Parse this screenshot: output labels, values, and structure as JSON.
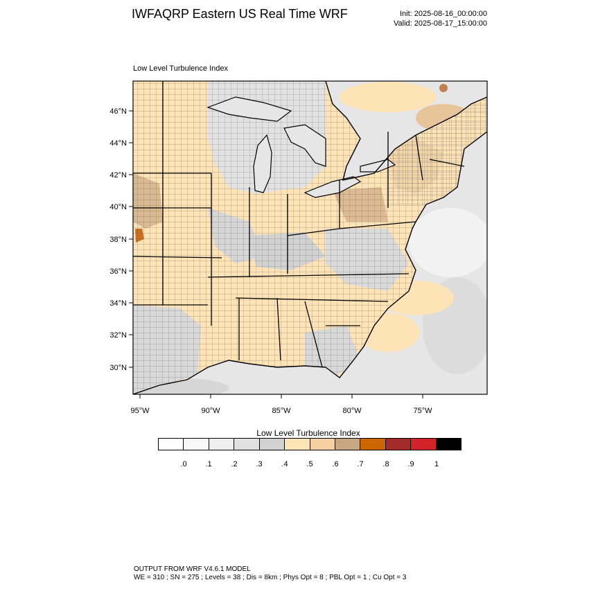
{
  "header": {
    "title": "IWFAQRP Eastern US Real Time WRF",
    "init": "Init: 2025-08-16_00:00:00",
    "valid": "Valid: 2025-08-17_15:00:00"
  },
  "map": {
    "subtitle": "Low Level Turbulence Index",
    "lat_labels": [
      "46°N",
      "44°N",
      "42°N",
      "40°N",
      "38°N",
      "36°N",
      "34°N",
      "32°N",
      "30°N"
    ],
    "lon_labels": [
      "95°W",
      "90°W",
      "85°W",
      "80°W",
      "75°W"
    ],
    "colors": {
      "ocean": "#e4e4e4",
      "low_gray": "#d9d9d9",
      "light_tan": "#fde3b5",
      "mid_tan": "#f0cf9d",
      "dark_tan": "#d2ad85",
      "orange": "#d06a10"
    }
  },
  "colorbar": {
    "title": "Low Level Turbulence Index",
    "colors": [
      "#ffffff",
      "#f8f8f8",
      "#eeeeee",
      "#e0e0e0",
      "#d2d2d2",
      "#ffe4b5",
      "#f5d0a0",
      "#c8a882",
      "#cc6600",
      "#a52a2a",
      "#d2232a",
      "#000000"
    ],
    "labels": [
      ".0",
      ".1",
      ".2",
      ".3",
      ".4",
      ".5",
      ".6",
      ".7",
      ".8",
      ".9",
      "1"
    ]
  },
  "footer": {
    "line1": "OUTPUT FROM WRF V4.6.1 MODEL",
    "line2": "WE = 310 ; SN = 275 ; Levels = 38 ; Dis = 8km ; Phys Opt = 8 ; PBL Opt = 1 ; Cu Opt = 3"
  }
}
